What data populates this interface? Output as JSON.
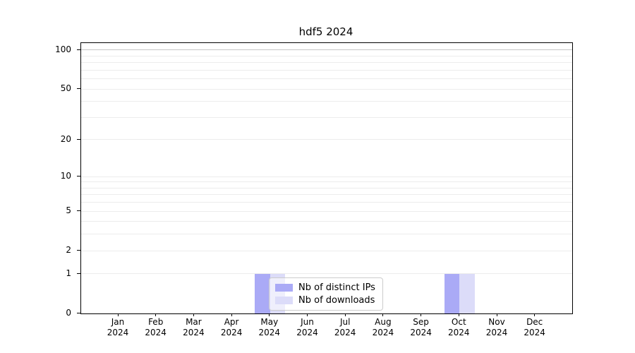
{
  "title": "hdf5 2024",
  "chart_data": {
    "type": "bar",
    "title": "hdf5 2024",
    "categories": [
      "Jan",
      "Feb",
      "Mar",
      "Apr",
      "May",
      "Jun",
      "Jul",
      "Aug",
      "Sep",
      "Oct",
      "Nov",
      "Dec"
    ],
    "category_year": "2024",
    "series": [
      {
        "name": "Nb of distinct IPs",
        "color": "#aaaaf6",
        "values": [
          0,
          0,
          0,
          0,
          1,
          0,
          0,
          0,
          0,
          1,
          0,
          0
        ]
      },
      {
        "name": "Nb of downloads",
        "color": "#dcdcf9",
        "values": [
          0,
          0,
          0,
          0,
          1,
          0,
          0,
          0,
          0,
          1,
          0,
          0
        ]
      }
    ],
    "xlabel": "",
    "ylabel": "",
    "y_ticks": [
      0,
      1,
      2,
      5,
      10,
      20,
      50,
      100
    ],
    "y_minor_ticks": [
      3,
      4,
      6,
      7,
      8,
      9,
      30,
      40,
      60,
      70,
      80,
      90
    ],
    "ylim": [
      0,
      113
    ],
    "scale": "log1p",
    "grid": "horizontal",
    "legend_position": "inside-bottom-center",
    "colors": {
      "grid": "#ececec",
      "grid_top_major": "#c6c6c6",
      "axis": "#000000",
      "background": "#ffffff"
    }
  }
}
